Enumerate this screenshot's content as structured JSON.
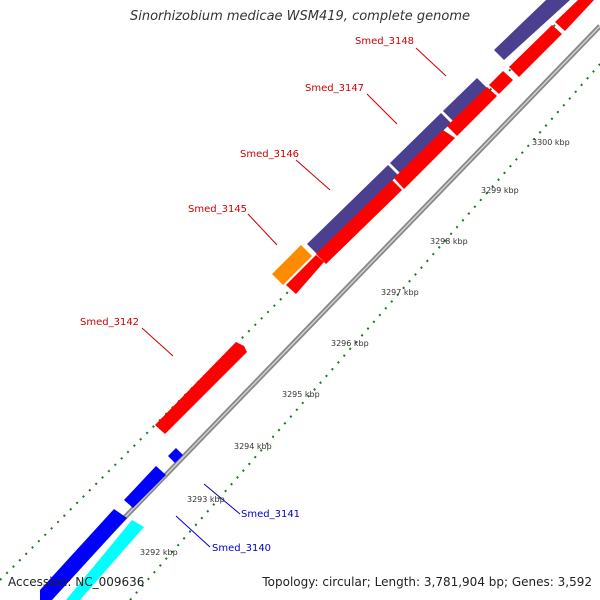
{
  "header": {
    "title": "Sinorhizobium medicae WSM419, complete genome"
  },
  "footer": {
    "accession": "Accession: NC_009636",
    "summary": "Topology: circular; Length: 3,781,904 bp; Genes: 3,592"
  },
  "colors": {
    "backbone": "#888888",
    "tick_dots": "#1a7a1a",
    "forward_gene": "#ff0000",
    "reverse_gene": "#0000ff",
    "cds_match": "#4b3f8f",
    "orange_feature": "#ff8c00",
    "cyan_feature": "#00ffff",
    "label_forward": "#cc0000",
    "label_reverse": "#0000cc"
  },
  "ticks": [
    {
      "label": "3292 kbp"
    },
    {
      "label": "3293 kbp"
    },
    {
      "label": "3294 kbp"
    },
    {
      "label": "3295 kbp"
    },
    {
      "label": "3296 kbp"
    },
    {
      "label": "3297 kbp"
    },
    {
      "label": "3298 kbp"
    },
    {
      "label": "3299 kbp"
    },
    {
      "label": "3300 kbp"
    }
  ],
  "gene_labels": [
    {
      "text": "Smed_3148",
      "strand": "forward"
    },
    {
      "text": "Smed_3147",
      "strand": "forward"
    },
    {
      "text": "Smed_3146",
      "strand": "forward"
    },
    {
      "text": "Smed_3145",
      "strand": "forward"
    },
    {
      "text": "Smed_3142",
      "strand": "forward"
    },
    {
      "text": "Smed_3141",
      "strand": "reverse"
    },
    {
      "text": "Smed_3140",
      "strand": "reverse"
    }
  ]
}
